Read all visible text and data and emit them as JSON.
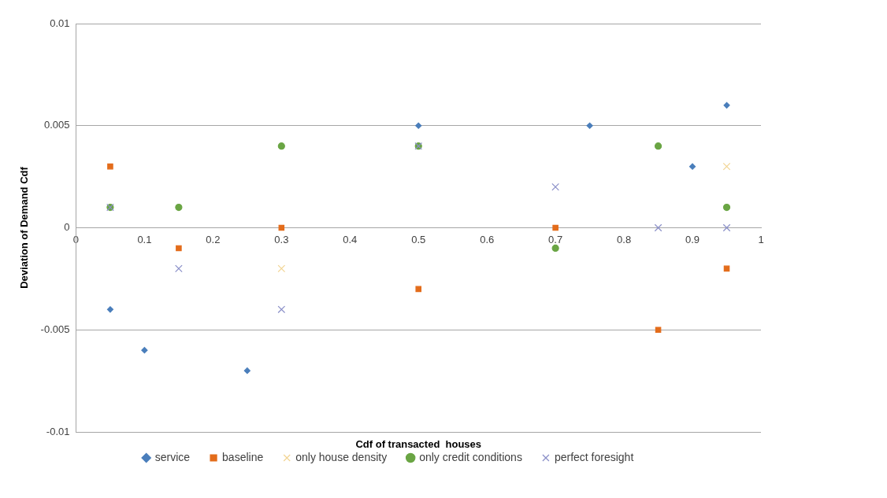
{
  "chart_data": {
    "type": "scatter",
    "xlabel": "Cdf of transacted  houses",
    "ylabel": "Deviation of Demand Cdf",
    "xlim": [
      0,
      1
    ],
    "xticks": [
      0,
      0.1,
      0.2,
      0.3,
      0.4,
      0.5,
      0.6,
      0.7,
      0.8,
      0.9,
      1
    ],
    "ylim": [
      -0.01,
      0.01
    ],
    "yticks": [
      -0.01,
      -0.005,
      0,
      0.005,
      0.01
    ],
    "grid": "y",
    "legend": "bottom",
    "series": [
      {
        "name": "service",
        "color": "#4a7ebb",
        "marker": "diamond",
        "x": [
          0.05,
          0.1,
          0.25,
          0.5,
          0.75,
          0.9,
          0.95
        ],
        "values": [
          -0.004,
          -0.006,
          -0.007,
          0.005,
          0.005,
          0.003,
          0.006
        ]
      },
      {
        "name": "baseline",
        "color": "#e36c1b",
        "marker": "square",
        "x": [
          0.05,
          0.15,
          0.3,
          0.5,
          0.7,
          0.85,
          0.95
        ],
        "values": [
          0.003,
          -0.001,
          0,
          -0.003,
          0,
          -0.005,
          -0.002
        ]
      },
      {
        "name": "only house density",
        "color": "#f2d492",
        "marker": "cross",
        "x": [
          0.3,
          0.95
        ],
        "values": [
          -0.002,
          0.003
        ]
      },
      {
        "name": "only credit conditions",
        "color": "#6aa544",
        "marker": "circle",
        "x": [
          0.05,
          0.15,
          0.3,
          0.5,
          0.7,
          0.85,
          0.95
        ],
        "values": [
          0.001,
          0.001,
          0.004,
          0.004,
          -0.001,
          0.004,
          0.001
        ]
      },
      {
        "name": "perfect foresight",
        "color": "#8a8fc8",
        "marker": "cross",
        "x": [
          0.05,
          0.15,
          0.3,
          0.5,
          0.7,
          0.85,
          0.95
        ],
        "values": [
          0.001,
          -0.002,
          -0.004,
          0.004,
          0.002,
          0,
          0
        ]
      }
    ]
  }
}
